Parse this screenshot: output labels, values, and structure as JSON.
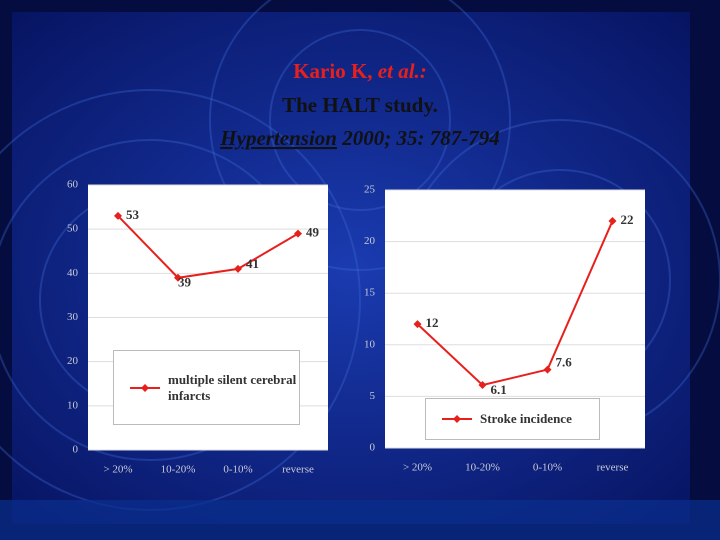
{
  "slide": {
    "title_lines": [
      [
        {
          "text": "Kario K, ",
          "italic": false,
          "underline": false
        },
        {
          "text": "et al.:",
          "italic": true,
          "underline": false
        }
      ],
      [
        {
          "text": "The HALT study.",
          "italic": false,
          "underline": false
        }
      ],
      [
        {
          "text": "Hypertension",
          "italic": true,
          "underline": true
        },
        {
          "text": " 2000; 35: 787-794",
          "italic": true,
          "underline": false
        }
      ]
    ]
  },
  "chart_data": [
    {
      "type": "line",
      "categories": [
        "> 20%",
        "10-20%",
        "0-10%",
        "reverse"
      ],
      "series": [
        {
          "name": "multiple silent cerebral infarcts",
          "color": "#e8201c",
          "values": [
            53,
            39,
            41,
            49
          ]
        }
      ],
      "ylim": [
        0,
        60
      ],
      "yticks": [
        0,
        10,
        20,
        30,
        40,
        50,
        60
      ],
      "grid": true
    },
    {
      "type": "line",
      "categories": [
        "> 20%",
        "10-20%",
        "0-10%",
        "reverse"
      ],
      "series": [
        {
          "name": "Stroke incidence",
          "color": "#e8201c",
          "values": [
            12,
            6.1,
            7.6,
            22
          ]
        }
      ],
      "ylim": [
        0,
        25
      ],
      "yticks": [
        0,
        5,
        10,
        15,
        20,
        25
      ],
      "grid": true
    }
  ]
}
